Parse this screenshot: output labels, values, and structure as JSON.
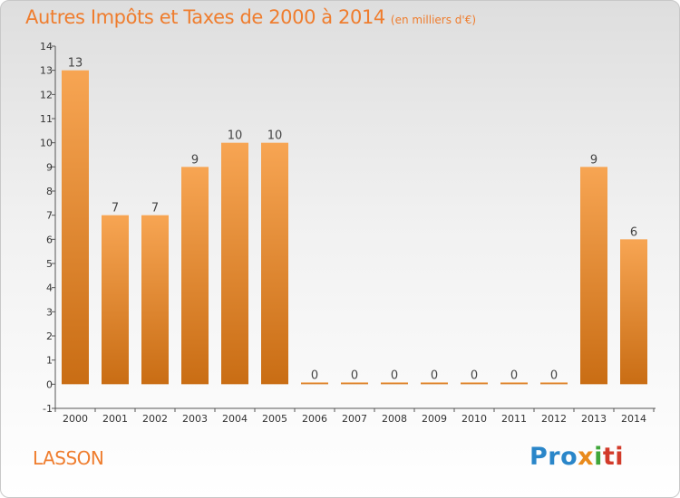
{
  "title": "Autres Impôts et Taxes de 2000 à 2014",
  "subtitle": "(en milliers d'€)",
  "place": "LASSON",
  "brand": {
    "p1": "Pro",
    "p2": "x",
    "p3": "i",
    "p4": "ti"
  },
  "colors": {
    "bar_light": "#f7a553",
    "bar_dark": "#c96d14",
    "title": "#ef7d2e"
  },
  "chart_data": {
    "type": "bar",
    "title": "Autres Impôts et Taxes de 2000 à 2014",
    "subtitle": "(en milliers d'€)",
    "categories": [
      "2000",
      "2001",
      "2002",
      "2003",
      "2004",
      "2005",
      "2006",
      "2007",
      "2008",
      "2009",
      "2010",
      "2011",
      "2012",
      "2013",
      "2014"
    ],
    "values": [
      13,
      7,
      7,
      9,
      10,
      10,
      0,
      0,
      0,
      0,
      0,
      0,
      0,
      9,
      6
    ],
    "data_labels": [
      "13",
      "7",
      "7",
      "9",
      "10",
      "10",
      "0",
      "0",
      "0",
      "0",
      "0",
      "0",
      "0",
      "9",
      "6"
    ],
    "y_ticks": [
      "-1",
      "0",
      "1",
      "2",
      "3",
      "4",
      "5",
      "6",
      "7",
      "8",
      "9",
      "10",
      "11",
      "12",
      "13",
      "14"
    ],
    "ylim": [
      -1,
      14
    ],
    "grid": false
  }
}
